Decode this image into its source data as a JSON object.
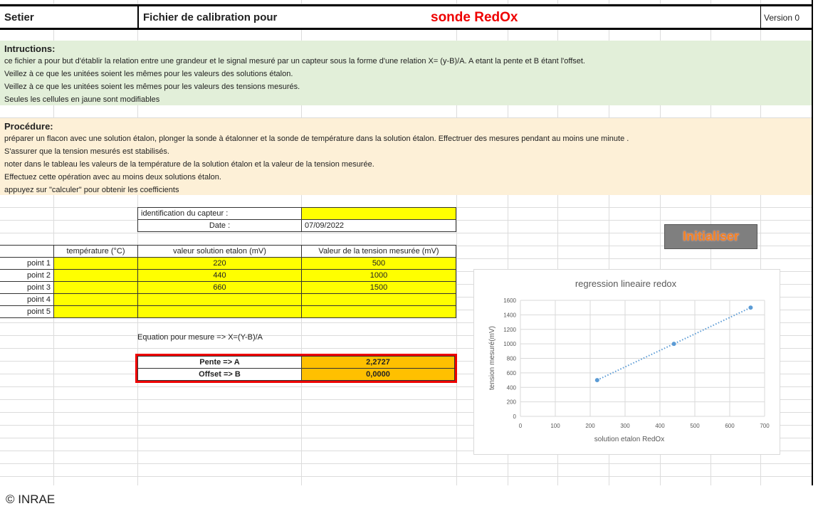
{
  "header": {
    "author": "Setier",
    "title": "Fichier de calibration pour",
    "subject": "sonde RedOx",
    "version": "Version 0"
  },
  "instructions": {
    "heading": "Intructions:",
    "lines": [
      "ce fichier a pour but d'établir la relation entre une grandeur et le signal mesuré par un capteur sous la forme d'une relation X= (y-B)/A.    A etant la pente et B étant l'offset.",
      "Veillez à ce que les unitées soient les mêmes pour les valeurs des solutions étalon.",
      "Veillez à ce que les unitées soient les mêmes pour les valeurs des tensions mesurés.",
      "Seules les cellules en jaune sont modifiables"
    ]
  },
  "procedure": {
    "heading": "Procédure:",
    "lines": [
      "préparer un flacon avec une solution étalon, plonger la sonde à étalonner et la sonde de température dans la solution étalon. Effectruer des mesures pendant au moins une minute .",
      "S'assurer que la tension mesurés est stabilisés.",
      "noter dans le tableau les valeurs de la température de la solution étalon et la valeur de la tension mesurée.",
      "Effectuez cette opération avec au moins deux solutions étalon.",
      "appuyez sur \"calculer\" pour obtenir les coefficients"
    ]
  },
  "sensor": {
    "id_label": "identification du capteur :",
    "id_value": "",
    "date_label": "Date :",
    "date_value": "07/09/2022"
  },
  "table": {
    "headers": [
      "température (°C)",
      "valeur solution etalon (mV)",
      "Valeur de la tension mesurée (mV)"
    ],
    "rows": [
      {
        "label": "point 1",
        "temp": "",
        "etalon": "220",
        "tension": "500"
      },
      {
        "label": "point 2",
        "temp": "",
        "etalon": "440",
        "tension": "1000"
      },
      {
        "label": "point 3",
        "temp": "",
        "etalon": "660",
        "tension": "1500"
      },
      {
        "label": "point 4",
        "temp": "",
        "etalon": "",
        "tension": ""
      },
      {
        "label": "point 5",
        "temp": "",
        "etalon": "",
        "tension": ""
      }
    ]
  },
  "equation": "Equation pour mesure => X=(Y-B)/A",
  "results": {
    "pente_label": "Pente => A",
    "pente_value": "2,2727",
    "offset_label": "Offset => B",
    "offset_value": "0,0000"
  },
  "button": {
    "label": "Initialiser"
  },
  "footer": "© INRAE",
  "chart_data": {
    "type": "scatter",
    "title": "regression lineaire redox",
    "xlabel": "solution etalon RedOx",
    "ylabel": "tension mesuré(mV)",
    "x": [
      220,
      440,
      660
    ],
    "y": [
      500,
      1000,
      1500
    ],
    "xlim": [
      0,
      700
    ],
    "ylim": [
      0,
      1600
    ],
    "xticks": [
      0,
      100,
      200,
      300,
      400,
      500,
      600,
      700
    ],
    "yticks": [
      0,
      200,
      400,
      600,
      800,
      1000,
      1200,
      1400,
      1600
    ],
    "trendline": "linear dotted",
    "grid": true,
    "color": "#5b9bd5"
  }
}
